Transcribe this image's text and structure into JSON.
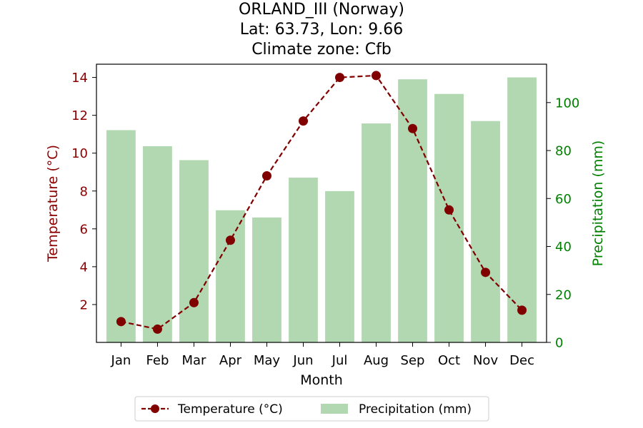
{
  "chart_data": {
    "type": "bar+line",
    "title_lines": [
      "ORLAND_III (Norway)",
      "Lat: 63.73, Lon: 9.66",
      "Climate zone: Cfb"
    ],
    "xlabel": "Month",
    "ylabel_left": "Temperature (°C)",
    "ylabel_right": "Precipitation (mm)",
    "categories": [
      "Jan",
      "Feb",
      "Mar",
      "Apr",
      "May",
      "Jun",
      "Jul",
      "Aug",
      "Sep",
      "Oct",
      "Nov",
      "Dec"
    ],
    "temperature": {
      "name": "Temperature (°C)",
      "values": [
        1.1,
        0.7,
        2.1,
        5.4,
        8.8,
        11.7,
        14.0,
        14.1,
        11.3,
        7.0,
        3.7,
        1.7
      ],
      "color": "#800000",
      "ylim": [
        0.0,
        14.7
      ],
      "ticks": [
        2,
        4,
        6,
        8,
        10,
        12,
        14
      ]
    },
    "precipitation": {
      "name": "Precipitation (mm)",
      "values": [
        88.5,
        81.8,
        76.0,
        55.1,
        52.1,
        68.7,
        63.1,
        91.3,
        109.7,
        103.6,
        92.3,
        110.5
      ],
      "color": "#b2d8b2",
      "ylim": [
        0,
        116
      ],
      "ticks": [
        0,
        20,
        40,
        60,
        80,
        100
      ]
    },
    "axis_colors": {
      "left": "#8b0000",
      "right": "#008000"
    },
    "grid": false,
    "legend": {
      "placement": "bottom-center",
      "entries": [
        "Temperature (°C)",
        "Precipitation (mm)"
      ]
    }
  }
}
